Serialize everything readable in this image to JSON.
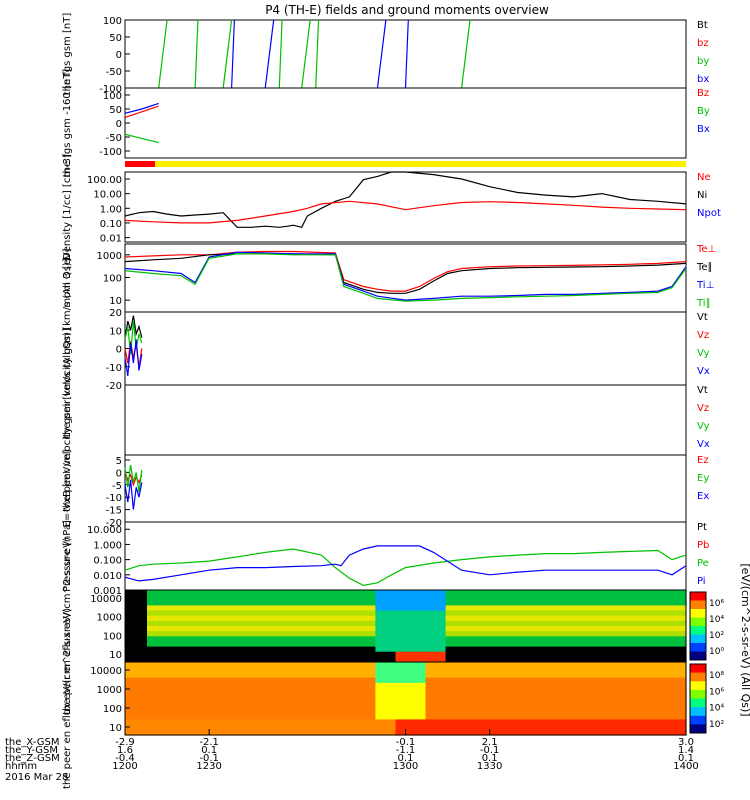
{
  "title": "P4 (TH-E) fields and ground moments overview",
  "chart_data": [
    {
      "type": "line",
      "ylabel": "the fgs gsm [nT]",
      "yticks": [
        "100",
        "50",
        "0",
        "-50",
        "-100"
      ],
      "yticks_v": [
        100,
        50,
        0,
        -50,
        -100
      ],
      "ylim": [
        -100,
        100
      ],
      "legend": [
        {
          "label": "Bt",
          "color": "#000000"
        },
        {
          "label": "bz",
          "color": "#ff0000"
        },
        {
          "label": "by",
          "color": "#00c000"
        },
        {
          "label": "bx",
          "color": "#0000ff"
        }
      ],
      "note": "values saturate the axis; steep transitions shown"
    },
    {
      "type": "line",
      "ylabel": "the fgs gsm -160 [nT]",
      "yticks": [
        "100",
        "50",
        "0",
        "-50",
        "-100"
      ],
      "yticks_v": [
        100,
        50,
        0,
        -50,
        -100
      ],
      "ylim": [
        -125,
        125
      ],
      "legend": [
        {
          "label": "Bz",
          "color": "#ff0000"
        },
        {
          "label": "By",
          "color": "#00c000"
        },
        {
          "label": "Bx",
          "color": "#0000ff"
        }
      ],
      "series": [
        {
          "name": "Bz",
          "color": "#ff0000",
          "x": [
            1200,
            1206,
            1212
          ],
          "y": [
            20,
            40,
            60
          ]
        },
        {
          "name": "By",
          "color": "#00c000",
          "x": [
            1200,
            1206,
            1212
          ],
          "y": [
            -40,
            -55,
            -70
          ]
        },
        {
          "name": "Bx",
          "color": "#0000ff",
          "x": [
            1200,
            1206,
            1212
          ],
          "y": [
            35,
            50,
            70
          ]
        }
      ]
    },
    {
      "type": "line",
      "ylabel": "Density [1/cc] [cm-3]",
      "log": true,
      "yticks": [
        "100.00",
        "10.00",
        "1.00",
        "0.10",
        "0.01"
      ],
      "yticks_v": [
        100,
        10,
        1,
        0.1,
        0.01
      ],
      "ylim": [
        0.005,
        300
      ],
      "legend": [
        {
          "label": "Ne",
          "color": "#ff0000"
        },
        {
          "label": "Ni",
          "color": "#000000"
        },
        {
          "label": "Npot",
          "color": "#0000ff"
        }
      ],
      "series": [
        {
          "name": "Ni",
          "color": "#000000",
          "x": [
            1200,
            1205,
            1210,
            1215,
            1220,
            1225,
            1230,
            1235,
            1240,
            1245,
            1250,
            1255,
            1258,
            1260,
            1263,
            1265,
            1270,
            1275,
            1280,
            1285,
            1290,
            1295,
            1300,
            1310,
            1320,
            1330,
            1340,
            1350,
            1360,
            1370,
            1380,
            1390,
            1400
          ],
          "y": [
            0.3,
            0.5,
            0.6,
            0.4,
            0.3,
            0.35,
            0.4,
            0.5,
            0.05,
            0.05,
            0.06,
            0.05,
            0.06,
            0.07,
            0.05,
            0.3,
            1.0,
            3,
            6,
            90,
            150,
            300,
            300,
            200,
            100,
            30,
            12,
            8,
            6,
            10,
            4,
            3,
            2
          ]
        },
        {
          "name": "Ne",
          "color": "#ff0000",
          "x": [
            1200,
            1210,
            1220,
            1230,
            1240,
            1250,
            1260,
            1265,
            1270,
            1280,
            1290,
            1300,
            1310,
            1320,
            1330,
            1340,
            1350,
            1360,
            1370,
            1380,
            1390,
            1400
          ],
          "y": [
            0.15,
            0.12,
            0.1,
            0.1,
            0.15,
            0.3,
            0.6,
            1.0,
            2.0,
            3.0,
            2.0,
            0.8,
            1.5,
            2.5,
            2.8,
            2.5,
            2.0,
            1.6,
            1.2,
            1.0,
            0.9,
            0.8
          ]
        }
      ]
    },
    {
      "type": "line",
      "ylabel": "mom 3 [eV]",
      "log": true,
      "yticks": [
        "1000",
        "100",
        "10"
      ],
      "yticks_v": [
        1000,
        100,
        10
      ],
      "ylim": [
        3,
        3000
      ],
      "legend": [
        {
          "label": "Te⊥",
          "color": "#ff0000"
        },
        {
          "label": "Te∥",
          "color": "#000000"
        },
        {
          "label": "Ti⊥",
          "color": "#0000ff"
        },
        {
          "label": "Ti∥",
          "color": "#00c000"
        }
      ],
      "series": [
        {
          "name": "Te⊥",
          "color": "#ff0000",
          "x": [
            1200,
            1210,
            1220,
            1230,
            1240,
            1250,
            1260,
            1275,
            1278,
            1285,
            1290,
            1295,
            1300,
            1305,
            1310,
            1315,
            1320,
            1330,
            1340,
            1350,
            1360,
            1370,
            1380,
            1390,
            1400
          ],
          "y": [
            800,
            900,
            1000,
            1000,
            1300,
            1400,
            1400,
            1200,
            80,
            40,
            30,
            25,
            25,
            40,
            90,
            180,
            250,
            300,
            320,
            330,
            340,
            360,
            380,
            420,
            500
          ]
        },
        {
          "name": "Te∥",
          "color": "#000000",
          "x": [
            1200,
            1210,
            1220,
            1230,
            1240,
            1250,
            1260,
            1275,
            1278,
            1285,
            1290,
            1295,
            1300,
            1305,
            1310,
            1315,
            1320,
            1330,
            1340,
            1350,
            1360,
            1370,
            1380,
            1390,
            1400
          ],
          "y": [
            500,
            600,
            700,
            1000,
            1100,
            1100,
            1100,
            1000,
            60,
            30,
            22,
            20,
            20,
            30,
            70,
            150,
            200,
            250,
            270,
            280,
            290,
            300,
            320,
            350,
            420
          ]
        },
        {
          "name": "Ti⊥",
          "color": "#0000ff",
          "x": [
            1200,
            1210,
            1220,
            1225,
            1230,
            1240,
            1250,
            1260,
            1275,
            1278,
            1285,
            1290,
            1300,
            1310,
            1320,
            1330,
            1340,
            1350,
            1360,
            1370,
            1380,
            1390,
            1395,
            1400
          ],
          "y": [
            250,
            200,
            150,
            60,
            800,
            1300,
            1200,
            1100,
            1100,
            50,
            25,
            15,
            10,
            12,
            15,
            15,
            16,
            18,
            18,
            20,
            22,
            25,
            40,
            300
          ]
        },
        {
          "name": "Ti∥",
          "color": "#00c000",
          "x": [
            1200,
            1210,
            1220,
            1225,
            1230,
            1240,
            1250,
            1260,
            1275,
            1278,
            1285,
            1290,
            1300,
            1310,
            1320,
            1330,
            1340,
            1350,
            1360,
            1370,
            1380,
            1390,
            1395,
            1400
          ],
          "y": [
            200,
            150,
            120,
            50,
            700,
            1100,
            1100,
            1000,
            1000,
            40,
            20,
            12,
            9,
            10,
            12,
            13,
            14,
            15,
            16,
            18,
            20,
            22,
            35,
            250
          ]
        }
      ]
    },
    {
      "type": "line",
      "ylabel": "the peir velocity gsm [km/s (All Qs)]",
      "yticks": [
        "20",
        "10",
        "0",
        "-10",
        "-20"
      ],
      "yticks_v": [
        20,
        10,
        0,
        -10,
        -20
      ],
      "ylim": [
        -20,
        20
      ],
      "legend": [
        {
          "label": "Vt",
          "color": "#000000"
        },
        {
          "label": "Vz",
          "color": "#ff0000"
        },
        {
          "label": "Vy",
          "color": "#00c000"
        },
        {
          "label": "Vx",
          "color": "#0000ff"
        }
      ],
      "series": [
        {
          "name": "Vt",
          "color": "#000000",
          "x": [
            1200,
            1201,
            1202,
            1203,
            1204,
            1205,
            1206
          ],
          "y": [
            5,
            15,
            10,
            18,
            8,
            12,
            6
          ]
        },
        {
          "name": "Vz",
          "color": "#ff0000",
          "x": [
            1200,
            1201,
            1202,
            1203,
            1204,
            1205,
            1206
          ],
          "y": [
            0,
            -8,
            4,
            -5,
            2,
            -10,
            0
          ]
        },
        {
          "name": "Vy",
          "color": "#00c000",
          "x": [
            1200,
            1201,
            1202,
            1203,
            1204,
            1205,
            1206
          ],
          "y": [
            5,
            12,
            -3,
            15,
            0,
            8,
            3
          ]
        },
        {
          "name": "Vx",
          "color": "#0000ff",
          "x": [
            1200,
            1201,
            1202,
            1203,
            1204,
            1205,
            1206
          ],
          "y": [
            -5,
            -15,
            3,
            -8,
            5,
            -12,
            -3
          ]
        }
      ]
    },
    {
      "type": "line",
      "ylabel": "the peer velocity gsm [km/s (All Qs)]",
      "yticks": [],
      "yticks_v": [],
      "ylim": [
        -20,
        20
      ],
      "legend": [
        {
          "label": "Vt",
          "color": "#000000"
        },
        {
          "label": "Vz",
          "color": "#ff0000"
        },
        {
          "label": "Vy",
          "color": "#00c000"
        },
        {
          "label": "Vx",
          "color": "#0000ff"
        }
      ],
      "series": []
    },
    {
      "type": "line",
      "ylabel": "E=-VxB [mV/m]",
      "yticks": [
        "5",
        "0",
        "-5",
        "-10",
        "-15",
        "-20"
      ],
      "yticks_v": [
        5,
        0,
        -5,
        -10,
        -15,
        -20
      ],
      "ylim": [
        -20,
        7
      ],
      "legend": [
        {
          "label": "Ez",
          "color": "#ff0000"
        },
        {
          "label": "Ey",
          "color": "#00c000"
        },
        {
          "label": "Ex",
          "color": "#0000ff"
        }
      ],
      "series": [
        {
          "name": "Ez",
          "color": "#ff0000",
          "x": [
            1200,
            1201,
            1202,
            1203,
            1204,
            1205,
            1206
          ],
          "y": [
            0,
            -3,
            -1,
            -5,
            -2,
            -4,
            -1
          ]
        },
        {
          "name": "Ey",
          "color": "#00c000",
          "x": [
            1200,
            1201,
            1202,
            1203,
            1204,
            1205,
            1206
          ],
          "y": [
            2,
            -6,
            3,
            -4,
            0,
            -8,
            1
          ]
        },
        {
          "name": "Ex",
          "color": "#0000ff",
          "x": [
            1200,
            1201,
            1202,
            1203,
            1204,
            1205,
            1206
          ],
          "y": [
            -5,
            -12,
            -3,
            -15,
            -6,
            -10,
            -4
          ]
        }
      ]
    },
    {
      "type": "line",
      "ylabel": "Pressure [nPa]",
      "log": true,
      "yticks": [
        "10.000",
        "1.000",
        "0.100",
        "0.010",
        "0.001"
      ],
      "yticks_v": [
        10,
        1,
        0.1,
        0.01,
        0.001
      ],
      "ylim": [
        0.001,
        30
      ],
      "legend": [
        {
          "label": "Pt",
          "color": "#000000"
        },
        {
          "label": "Pb",
          "color": "#ff0000"
        },
        {
          "label": "Pe",
          "color": "#00c000"
        },
        {
          "label": "Pi",
          "color": "#0000ff"
        }
      ],
      "series": [
        {
          "name": "Pe",
          "color": "#00c000",
          "x": [
            1200,
            1205,
            1210,
            1220,
            1230,
            1240,
            1250,
            1260,
            1270,
            1275,
            1280,
            1285,
            1290,
            1295,
            1300,
            1310,
            1320,
            1330,
            1340,
            1350,
            1360,
            1370,
            1380,
            1390,
            1395,
            1400
          ],
          "y": [
            0.02,
            0.04,
            0.05,
            0.06,
            0.08,
            0.15,
            0.3,
            0.5,
            0.2,
            0.03,
            0.006,
            0.002,
            0.003,
            0.01,
            0.03,
            0.06,
            0.1,
            0.15,
            0.2,
            0.25,
            0.25,
            0.3,
            0.35,
            0.4,
            0.1,
            0.2
          ]
        },
        {
          "name": "Pi",
          "color": "#0000ff",
          "x": [
            1200,
            1205,
            1210,
            1220,
            1230,
            1240,
            1250,
            1260,
            1270,
            1275,
            1277,
            1280,
            1285,
            1290,
            1300,
            1305,
            1310,
            1320,
            1330,
            1340,
            1350,
            1360,
            1370,
            1380,
            1390,
            1395,
            1400
          ],
          "y": [
            0.007,
            0.004,
            0.005,
            0.01,
            0.02,
            0.03,
            0.03,
            0.035,
            0.04,
            0.05,
            0.04,
            0.2,
            0.5,
            0.8,
            0.8,
            0.8,
            0.3,
            0.02,
            0.01,
            0.015,
            0.02,
            0.02,
            0.02,
            0.02,
            0.02,
            0.01,
            0.04
          ]
        }
      ]
    },
    {
      "type": "heatmap",
      "ylabel": "the peir en eflux eV/(cm^2-s-sr-eV)",
      "yticks": [
        "10000",
        "1000",
        "100",
        "10"
      ],
      "colorbar_ticks": [
        "10⁶",
        "10⁴",
        "10²",
        "10⁰"
      ]
    },
    {
      "type": "heatmap",
      "ylabel": "the peer en eflux eV/(cm^2-s-sr-eV)",
      "yticks": [
        "10000",
        "1000",
        "100",
        "10"
      ],
      "colorbar_ticks": [
        "10⁸",
        "10⁶",
        "10⁴",
        "10²"
      ]
    }
  ],
  "colorbar_label": "[eV/(cm^2-s-sr-eV) (All Qs)]",
  "xaxis": {
    "x_gsm": {
      "label": "the_X-GSM",
      "values": [
        "-2.9",
        "-2.1",
        "-0.1",
        "2.1",
        "3.0"
      ]
    },
    "y_gsm": {
      "label": "the_Y-GSM",
      "values": [
        "1.6",
        "0.1",
        "-1.1",
        "-0.1",
        "1.4"
      ]
    },
    "z_gsm": {
      "label": "the_Z-GSM",
      "values": [
        "-0.4",
        "-0.1",
        "0.1",
        "0.1",
        "0.1"
      ]
    },
    "hhmm": {
      "label": "hhmm",
      "values": [
        "1200",
        "1230",
        "1300",
        "1330",
        "1400"
      ],
      "ticks": [
        1200,
        1230,
        1300,
        1330,
        1400
      ]
    },
    "date": "2016 Mar 28"
  }
}
